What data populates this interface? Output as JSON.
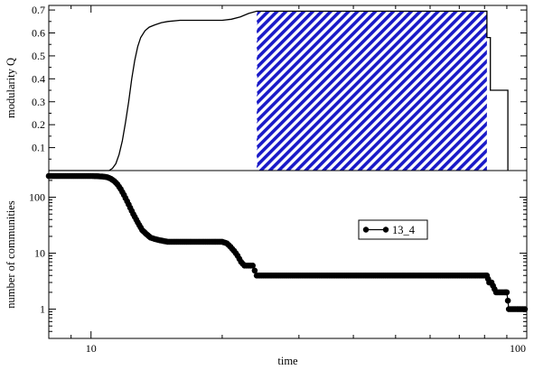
{
  "chart_data": [
    {
      "type": "line",
      "panel": "top",
      "xscale": "log",
      "xlim": [
        8,
        100
      ],
      "ylim": [
        0,
        0.72
      ],
      "ylabel": "modularity Q",
      "yticks": [
        0.1,
        0.2,
        0.3,
        0.4,
        0.5,
        0.6,
        0.7
      ],
      "ytick_labels": [
        "0.1",
        "0.2",
        "0.3",
        "0.4",
        "0.5",
        "0.6",
        "0.7"
      ],
      "series": [
        {
          "x": [
            8,
            11.0,
            11.2,
            11.4,
            11.6,
            11.8,
            12.0,
            12.2,
            12.4,
            12.6,
            12.8,
            13.0,
            13.3,
            13.6,
            14.0,
            14.5,
            15,
            16,
            17,
            18,
            19,
            20,
            21,
            22,
            23,
            24,
            81,
            81,
            82.5,
            82.5,
            85.5,
            85.5,
            90.5,
            90.5
          ],
          "y": [
            0,
            0,
            0.01,
            0.03,
            0.07,
            0.13,
            0.21,
            0.3,
            0.4,
            0.48,
            0.54,
            0.58,
            0.61,
            0.625,
            0.635,
            0.645,
            0.65,
            0.655,
            0.655,
            0.655,
            0.655,
            0.655,
            0.66,
            0.67,
            0.685,
            0.695,
            0.695,
            0.58,
            0.58,
            0.35,
            0.35,
            0.35,
            0.35,
            0
          ]
        }
      ],
      "shaded_region": {
        "x": [
          24,
          81
        ],
        "y": [
          0,
          0.695
        ],
        "pattern": "diagonal-hatch",
        "color": "#1a1ac8"
      }
    },
    {
      "type": "scatter",
      "panel": "bottom",
      "xscale": "log",
      "yscale": "log",
      "xlim": [
        8,
        100
      ],
      "ylim": [
        0.3,
        300
      ],
      "xlabel": "time",
      "ylabel": "number of communities",
      "xticks": [
        10,
        100
      ],
      "xtick_labels": [
        "10",
        "100"
      ],
      "yticks": [
        1,
        10,
        100
      ],
      "ytick_labels": [
        "1",
        "10",
        "100"
      ],
      "legend": {
        "position": "right",
        "entries": [
          "13_4"
        ]
      },
      "series": [
        {
          "name": "13_4",
          "x": [
            8.0,
            8.5,
            9.0,
            9.5,
            10.0,
            10.3,
            10.6,
            10.9,
            11.1,
            11.3,
            11.5,
            11.7,
            11.9,
            12.1,
            12.3,
            12.5,
            12.7,
            12.9,
            13.1,
            13.4,
            13.7,
            14.0,
            14.4,
            15.0,
            16.0,
            17.0,
            18.0,
            19.0,
            20.0,
            20.5,
            20.9,
            21.3,
            21.7,
            22.1,
            22.5,
            23.0,
            23.5,
            24.0,
            30.0,
            40.0,
            50.0,
            60.0,
            70.0,
            80.0,
            81.0,
            82.0,
            83.0,
            85.0,
            87.0,
            89.0,
            90.0,
            91.0,
            93.0,
            95.0,
            97.0,
            99.0
          ],
          "y": [
            240,
            240,
            240,
            240,
            240,
            238,
            235,
            228,
            215,
            195,
            170,
            140,
            110,
            85,
            65,
            50,
            40,
            32,
            26,
            22,
            19,
            18,
            17,
            16,
            16,
            16,
            16,
            16,
            16,
            15,
            13,
            11,
            9,
            7,
            6,
            6,
            6,
            4,
            4,
            4,
            4,
            4,
            4,
            4,
            4,
            3,
            3,
            2,
            2,
            2,
            2,
            1,
            1,
            1,
            1,
            1
          ]
        }
      ]
    }
  ],
  "colors": {
    "hatch": "#1a1ac8",
    "line": "#000000",
    "background": "#ffffff"
  }
}
